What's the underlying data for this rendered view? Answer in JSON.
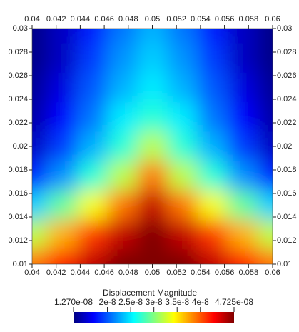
{
  "chart_data": {
    "type": "heatmap",
    "x": [
      0.04,
      0.0425,
      0.045,
      0.0475,
      0.05,
      0.0525,
      0.055,
      0.0575,
      0.06
    ],
    "y": [
      0.03,
      0.0275,
      0.025,
      0.0225,
      0.02,
      0.0175,
      0.015,
      0.0125,
      0.01
    ],
    "z": [
      [
        1.3e-08,
        1.5e-08,
        1.8e-08,
        2.1e-08,
        2.3e-08,
        2.1e-08,
        1.8e-08,
        1.5e-08,
        1.3e-08
      ],
      [
        1.3e-08,
        1.5e-08,
        1.9e-08,
        2.2e-08,
        2.4e-08,
        2.2e-08,
        1.9e-08,
        1.5e-08,
        1.3e-08
      ],
      [
        1.35e-08,
        1.6e-08,
        2e-08,
        2.3e-08,
        2.5e-08,
        2.3e-08,
        2e-08,
        1.6e-08,
        1.35e-08
      ],
      [
        1.4e-08,
        1.7e-08,
        2.1e-08,
        2.5e-08,
        2.7e-08,
        2.5e-08,
        2.1e-08,
        1.7e-08,
        1.4e-08
      ],
      [
        1.5e-08,
        1.9e-08,
        2.3e-08,
        2.7e-08,
        3.2e-08,
        2.7e-08,
        2.3e-08,
        1.9e-08,
        1.5e-08
      ],
      [
        1.8e-08,
        2.2e-08,
        2.7e-08,
        3.2e-08,
        3.9e-08,
        3.2e-08,
        2.7e-08,
        2.2e-08,
        1.8e-08
      ],
      [
        2.4e-08,
        2.9e-08,
        3.4e-08,
        3.9e-08,
        4.5e-08,
        3.9e-08,
        3.4e-08,
        2.9e-08,
        2.4e-08
      ],
      [
        3.2e-08,
        3.7e-08,
        4.1e-08,
        4.5e-08,
        4.72e-08,
        4.5e-08,
        4.1e-08,
        3.7e-08,
        3.2e-08
      ],
      [
        3.9e-08,
        4.2e-08,
        4.5e-08,
        4.72e-08,
        4.72e-08,
        4.72e-08,
        4.5e-08,
        4.2e-08,
        3.9e-08
      ]
    ],
    "xlim": [
      0.04,
      0.06
    ],
    "xticks": [
      0.04,
      0.042,
      0.044,
      0.046,
      0.048,
      0.05,
      0.052,
      0.054,
      0.056,
      0.058,
      0.06
    ],
    "ylim": [
      0.01,
      0.03
    ],
    "yticks": [
      0.01,
      0.012,
      0.014,
      0.016,
      0.018,
      0.02,
      0.022,
      0.024,
      0.026,
      0.028,
      0.03
    ],
    "colorbar_title": "Displacement Magnitude",
    "clim": [
      1.27e-08,
      4.725e-08
    ],
    "cticks": [
      {
        "value": 1.27e-08,
        "label": "1.270e-08"
      },
      2e-08,
      2.5e-08,
      3e-08,
      3.5e-08,
      4e-08,
      {
        "value": 4.725e-08,
        "label": "4.725e-08"
      }
    ],
    "colormap": [
      "#00007f",
      "#0000ff",
      "#0080ff",
      "#00ffff",
      "#80ff80",
      "#ffff00",
      "#ff8000",
      "#ff0000",
      "#7f0000"
    ]
  }
}
